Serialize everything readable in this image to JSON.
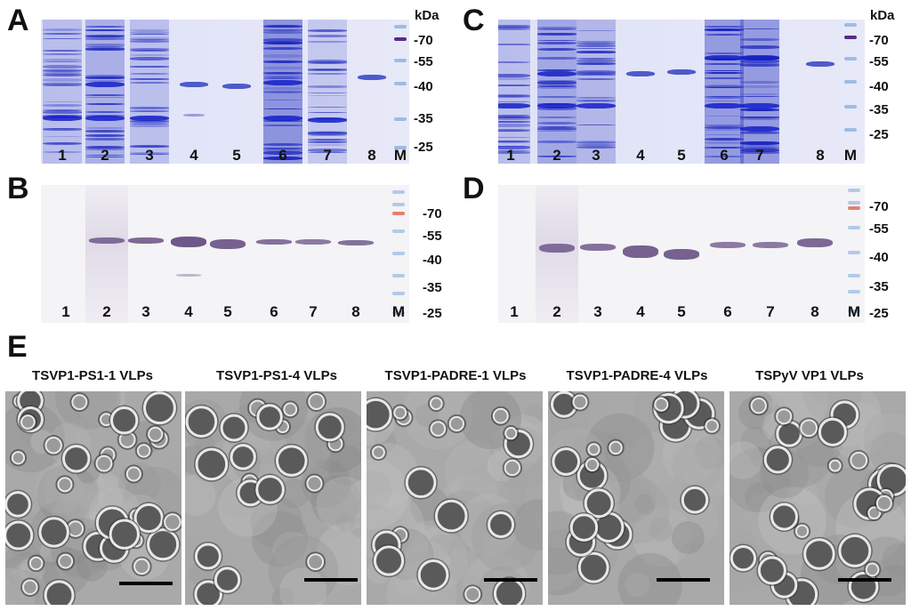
{
  "panels": {
    "A": {
      "letter": "A"
    },
    "B": {
      "letter": "B"
    },
    "C": {
      "letter": "C"
    },
    "D": {
      "letter": "D"
    },
    "E": {
      "letter": "E"
    }
  },
  "lanes": [
    "1",
    "2",
    "3",
    "4",
    "5",
    "6",
    "7",
    "8",
    "M"
  ],
  "kda_unit": "kDa",
  "kda_markers_gel": [
    "-70",
    "-55",
    "-40",
    "-35",
    "-25"
  ],
  "kda_markers_blot": [
    "-70",
    "-55",
    "-40",
    "-35",
    "-25"
  ],
  "em_titles": [
    "TSVP1-PS1-1 VLPs",
    "TSVP1-PS1-4 VLPs",
    "TSVP1-PADRE-1 VLPs",
    "TSVP1-PADRE-4 VLPs",
    "TSPyV VP1 VLPs"
  ],
  "colors": {
    "coomassie": "#3344cc",
    "blot_band": "#6b4f86",
    "marker_red": "#e2735f",
    "marker_blue": "#7fa6dd",
    "marker_purple": "#5a2a8a"
  }
}
